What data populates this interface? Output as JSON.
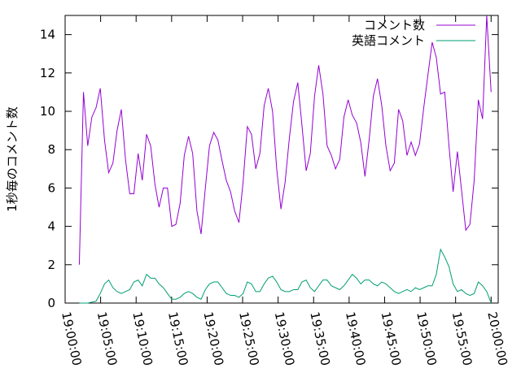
{
  "chart_data": {
    "type": "line",
    "y_label": "1秒毎のコメント数",
    "x": [
      "19:02:00",
      "19:02:35",
      "19:03:11",
      "19:03:46",
      "19:04:22",
      "19:04:57",
      "19:05:33",
      "19:06:08",
      "19:06:44",
      "19:07:19",
      "19:07:55",
      "19:08:30",
      "19:09:06",
      "19:09:41",
      "19:10:17",
      "19:10:52",
      "19:11:28",
      "19:12:03",
      "19:12:39",
      "19:13:14",
      "19:13:50",
      "19:14:25",
      "19:15:01",
      "19:15:36",
      "19:16:12",
      "19:16:47",
      "19:17:23",
      "19:17:58",
      "19:18:34",
      "19:19:09",
      "19:19:45",
      "19:20:20",
      "19:20:56",
      "19:21:31",
      "19:22:07",
      "19:22:42",
      "19:23:18",
      "19:23:53",
      "19:24:29",
      "19:25:04",
      "19:25:40",
      "19:26:15",
      "19:26:51",
      "19:27:26",
      "19:28:02",
      "19:28:37",
      "19:29:13",
      "19:29:48",
      "19:30:24",
      "19:30:59",
      "19:31:35",
      "19:32:10",
      "19:32:46",
      "19:33:21",
      "19:33:57",
      "19:34:32",
      "19:35:08",
      "19:35:43",
      "19:36:19",
      "19:36:54",
      "19:37:30",
      "19:38:05",
      "19:38:41",
      "19:39:16",
      "19:39:52",
      "19:40:27",
      "19:41:03",
      "19:41:38",
      "19:42:14",
      "19:42:49",
      "19:43:25",
      "19:44:00",
      "19:44:36",
      "19:45:11",
      "19:45:47",
      "19:46:22",
      "19:46:58",
      "19:47:33",
      "19:48:09",
      "19:48:44",
      "19:49:20",
      "19:49:55",
      "19:50:31",
      "19:51:06",
      "19:51:42",
      "19:52:17",
      "19:52:53",
      "19:53:28",
      "19:54:04",
      "19:54:39",
      "19:55:15",
      "19:55:50",
      "19:56:26",
      "19:57:01",
      "19:57:37",
      "19:58:12",
      "19:58:48",
      "19:59:23",
      "20:00:00"
    ],
    "series": [
      {
        "name": "コメント数",
        "color": "#9400d3",
        "values": [
          2,
          11,
          8.2,
          9.7,
          10.2,
          11.2,
          8.5,
          6.8,
          7.3,
          9,
          10.1,
          7.5,
          5.7,
          5.7,
          7.8,
          6.4,
          8.8,
          8.2,
          6.2,
          5,
          6,
          6,
          4,
          4.1,
          5.2,
          7.7,
          8.7,
          7.8,
          4.8,
          3.6,
          6,
          8.2,
          8.9,
          8.5,
          7.4,
          6.4,
          5.8,
          4.8,
          4.2,
          6.3,
          9.2,
          8.8,
          7,
          7.8,
          10.3,
          11.2,
          10,
          7,
          4.9,
          6.3,
          8.6,
          10.5,
          11.5,
          9.3,
          6.9,
          7.8,
          10.8,
          12.4,
          10.9,
          8.2,
          7.7,
          7,
          7.5,
          9.7,
          10.6,
          9.8,
          9.4,
          8.4,
          6.6,
          8.5,
          10.8,
          11.7,
          10.3,
          8.2,
          6.9,
          7.3,
          10.1,
          9.5,
          7.7,
          8.4,
          7.7,
          8.3,
          10.2,
          11.9,
          13.6,
          12.8,
          10.9,
          11,
          8.2,
          5.8,
          7.9,
          5.9,
          3.8,
          4.1,
          6.4,
          10.6,
          9.6,
          15,
          11
        ]
      },
      {
        "name": "英語コメント",
        "color": "#009e73",
        "values": [
          0,
          0,
          0,
          0.05,
          0.1,
          0.5,
          1.0,
          1.2,
          0.8,
          0.6,
          0.5,
          0.6,
          0.7,
          1.1,
          1.2,
          0.9,
          1.5,
          1.3,
          1.3,
          1.0,
          0.8,
          0.5,
          0.2,
          0.2,
          0.3,
          0.5,
          0.6,
          0.5,
          0.3,
          0.2,
          0.7,
          1.0,
          1.1,
          1.1,
          0.8,
          0.5,
          0.4,
          0.4,
          0.3,
          0.5,
          1.1,
          1.0,
          0.6,
          0.6,
          1.0,
          1.3,
          1.4,
          1.1,
          0.7,
          0.6,
          0.6,
          0.7,
          0.7,
          1.1,
          1.2,
          0.8,
          0.6,
          0.9,
          1.2,
          1.2,
          0.9,
          0.8,
          0.7,
          0.9,
          1.2,
          1.5,
          1.3,
          1.0,
          1.2,
          1.2,
          1.0,
          0.9,
          1.1,
          1.0,
          0.8,
          0.6,
          0.5,
          0.6,
          0.7,
          0.6,
          0.8,
          0.7,
          0.8,
          0.9,
          0.9,
          1.5,
          2.8,
          2.4,
          1.9,
          1.0,
          0.6,
          0.7,
          0.5,
          0.4,
          0.5,
          1.1,
          0.9,
          0.6,
          0
        ]
      }
    ],
    "xlim": [
      "19:00:00",
      "20:01:00"
    ],
    "xticks": [
      "19:00:00",
      "19:05:00",
      "19:10:00",
      "19:15:00",
      "19:20:00",
      "19:25:00",
      "19:30:00",
      "19:35:00",
      "19:40:00",
      "19:45:00",
      "19:50:00",
      "19:55:00",
      "20:00:00"
    ],
    "ylim": [
      0,
      15
    ],
    "yticks": [
      0,
      2,
      4,
      6,
      8,
      10,
      12,
      14
    ],
    "legend": "top-right"
  }
}
